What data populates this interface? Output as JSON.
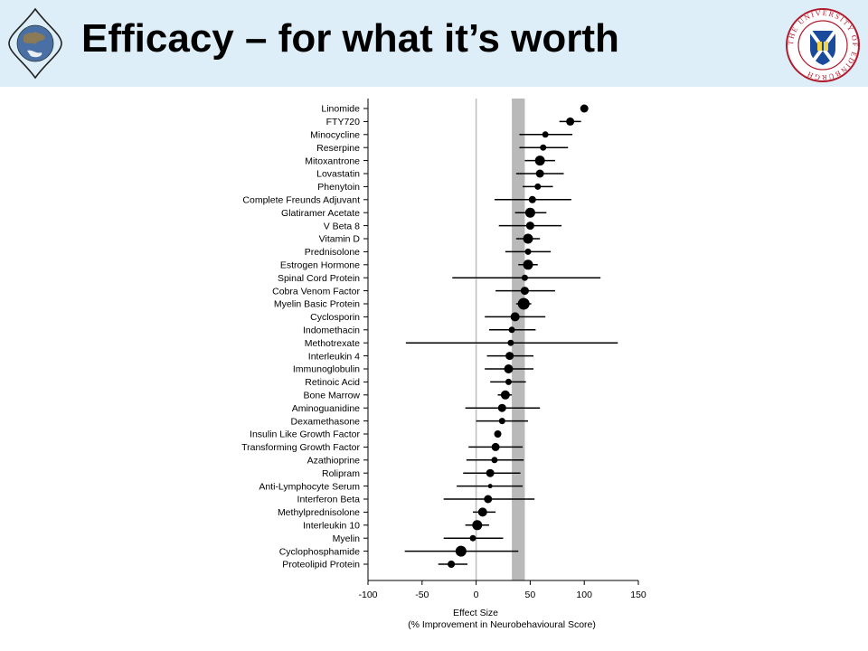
{
  "header": {
    "title": "Efficacy – for what it’s worth",
    "logo_text": "THE UNIVERSITY OF EDINBURGH"
  },
  "colors": {
    "header_bg": "#ddeef9",
    "band": "#b9b9b9",
    "zero_line": "#bfbfbf",
    "marker": "#000000"
  },
  "chart_data": {
    "type": "scatter",
    "subtype": "forest-plot",
    "xlabel": "Effect Size",
    "xlabel_sub": "(% Improvement in Neurobehavioural Score)",
    "xlim": [
      -100,
      150
    ],
    "xticks": [
      -100,
      -50,
      0,
      50,
      100,
      150
    ],
    "reference_line": 0,
    "shaded_band": [
      33,
      45
    ],
    "grid": false,
    "rows": [
      {
        "name": "Linomide",
        "value": 100,
        "low": 100,
        "high": 100,
        "size": 4.5
      },
      {
        "name": "FTY720",
        "value": 87,
        "low": 77,
        "high": 97,
        "size": 4.5
      },
      {
        "name": "Minocycline",
        "value": 64,
        "low": 40,
        "high": 89,
        "size": 3.5
      },
      {
        "name": "Reserpine",
        "value": 62,
        "low": 40,
        "high": 85,
        "size": 3.5
      },
      {
        "name": "Mitoxantrone",
        "value": 59,
        "low": 45,
        "high": 73,
        "size": 5.5
      },
      {
        "name": "Lovastatin",
        "value": 59,
        "low": 37,
        "high": 81,
        "size": 4.5
      },
      {
        "name": "Phenytoin",
        "value": 57,
        "low": 43,
        "high": 71,
        "size": 3.5
      },
      {
        "name": "Complete Freunds Adjuvant",
        "value": 52,
        "low": 17,
        "high": 88,
        "size": 4.0
      },
      {
        "name": "Glatiramer Acetate",
        "value": 50,
        "low": 36,
        "high": 65,
        "size": 5.5
      },
      {
        "name": "V Beta 8",
        "value": 50,
        "low": 21,
        "high": 79,
        "size": 4.5
      },
      {
        "name": "Vitamin D",
        "value": 48,
        "low": 37,
        "high": 59,
        "size": 5.5
      },
      {
        "name": "Prednisolone",
        "value": 48,
        "low": 27,
        "high": 69,
        "size": 3.5
      },
      {
        "name": "Estrogen Hormone",
        "value": 48,
        "low": 39,
        "high": 57,
        "size": 5.5
      },
      {
        "name": "Spinal Cord Protein",
        "value": 45,
        "low": -22,
        "high": 115,
        "size": 3.5
      },
      {
        "name": "Cobra Venom Factor",
        "value": 45,
        "low": 18,
        "high": 73,
        "size": 4.5
      },
      {
        "name": "Myelin Basic Protein",
        "value": 44,
        "low": 37,
        "high": 51,
        "size": 6.5
      },
      {
        "name": "Cyclosporin",
        "value": 36,
        "low": 8,
        "high": 64,
        "size": 5.0
      },
      {
        "name": "Indomethacin",
        "value": 33,
        "low": 12,
        "high": 55,
        "size": 3.5
      },
      {
        "name": "Methotrexate",
        "value": 32,
        "low": -65,
        "high": 131,
        "size": 3.5
      },
      {
        "name": "Interleukin 4",
        "value": 31,
        "low": 10,
        "high": 53,
        "size": 4.5
      },
      {
        "name": "Immunoglobulin",
        "value": 30,
        "low": 8,
        "high": 53,
        "size": 5.0
      },
      {
        "name": "Retinoic Acid",
        "value": 30,
        "low": 13,
        "high": 46,
        "size": 3.5
      },
      {
        "name": "Bone Marrow",
        "value": 27,
        "low": 20,
        "high": 33,
        "size": 5.0
      },
      {
        "name": "Aminoguanidine",
        "value": 24,
        "low": -10,
        "high": 59,
        "size": 4.5
      },
      {
        "name": "Dexamethasone",
        "value": 24,
        "low": 0,
        "high": 48,
        "size": 3.5
      },
      {
        "name": "Insulin Like Growth Factor",
        "value": 20,
        "low": 20,
        "high": 20,
        "size": 4.0
      },
      {
        "name": "Transforming Growth Factor",
        "value": 18,
        "low": -7,
        "high": 43,
        "size": 4.5
      },
      {
        "name": "Azathioprine",
        "value": 17,
        "low": -9,
        "high": 44,
        "size": 3.5
      },
      {
        "name": "Rolipram",
        "value": 13,
        "low": -12,
        "high": 41,
        "size": 4.5
      },
      {
        "name": "Anti-Lymphocyte Serum",
        "value": 13,
        "low": -18,
        "high": 43,
        "size": 2.5
      },
      {
        "name": "Interferon Beta",
        "value": 11,
        "low": -30,
        "high": 54,
        "size": 4.5
      },
      {
        "name": "Methylprednisolone",
        "value": 6,
        "low": -3,
        "high": 18,
        "size": 5.0
      },
      {
        "name": "Interleukin 10",
        "value": 1,
        "low": -10,
        "high": 12,
        "size": 5.5
      },
      {
        "name": "Myelin",
        "value": -3,
        "low": -30,
        "high": 25,
        "size": 3.5
      },
      {
        "name": "Cyclophosphamide",
        "value": -14,
        "low": -66,
        "high": 39,
        "size": 6.0
      },
      {
        "name": "Proteolipid Protein",
        "value": -23,
        "low": -35,
        "high": -8,
        "size": 4.0
      }
    ]
  }
}
